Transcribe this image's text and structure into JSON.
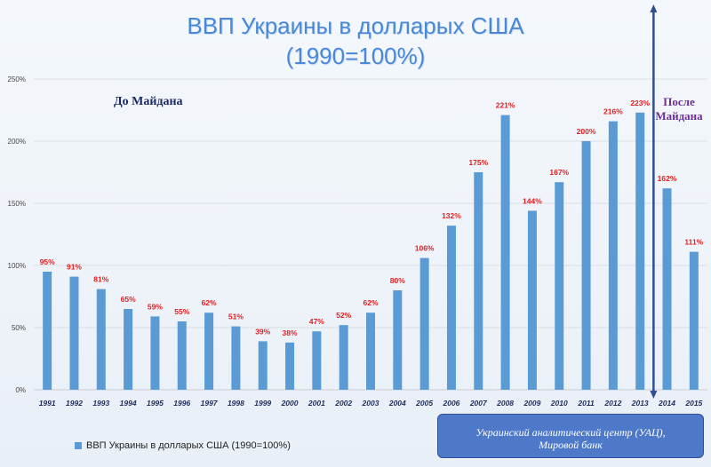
{
  "title_line1": "ВВП Украины в долларых США",
  "title_line2": "(1990=100%)",
  "note_before": "До Майдана",
  "note_after_line1": "После",
  "note_after_line2": "Майдана",
  "legend_label": "ВВП Украины в долларых США (1990=100%)",
  "source_line1": "Украинский аналитический центр (УАЦ),",
  "source_line2": "Мировой банк",
  "colors": {
    "bar": "#5b9bd5",
    "data_label": "#e02020",
    "title": "#4a88d6",
    "divider": "#2f4f8f"
  },
  "chart_data": {
    "type": "bar",
    "categories": [
      "1991",
      "1992",
      "1993",
      "1994",
      "1995",
      "1996",
      "1997",
      "1998",
      "1999",
      "2000",
      "2001",
      "2002",
      "2003",
      "2004",
      "2005",
      "2006",
      "2007",
      "2008",
      "2009",
      "2010",
      "2011",
      "2012",
      "2013",
      "2014",
      "2015"
    ],
    "series": [
      {
        "name": "ВВП Украины в долларых США (1990=100%)",
        "values": [
          95,
          91,
          81,
          65,
          59,
          55,
          62,
          51,
          39,
          38,
          47,
          52,
          62,
          80,
          106,
          132,
          175,
          221,
          144,
          167,
          200,
          216,
          223,
          162,
          111
        ],
        "labels": [
          "95%",
          "91%",
          "81%",
          "65%",
          "59%",
          "55%",
          "62%",
          "51%",
          "39%",
          "38%",
          "47%",
          "52%",
          "62%",
          "80%",
          "106%",
          "132%",
          "175%",
          "221%",
          "144%",
          "167%",
          "200%",
          "216%",
          "223%",
          "162%",
          "111%"
        ]
      }
    ],
    "ylim": [
      0,
      250
    ],
    "yticks": [
      "0%",
      "50%",
      "100%",
      "150%",
      "200%",
      "250%"
    ],
    "gridlines": true,
    "divider_between": [
      "2013",
      "2014"
    ]
  }
}
